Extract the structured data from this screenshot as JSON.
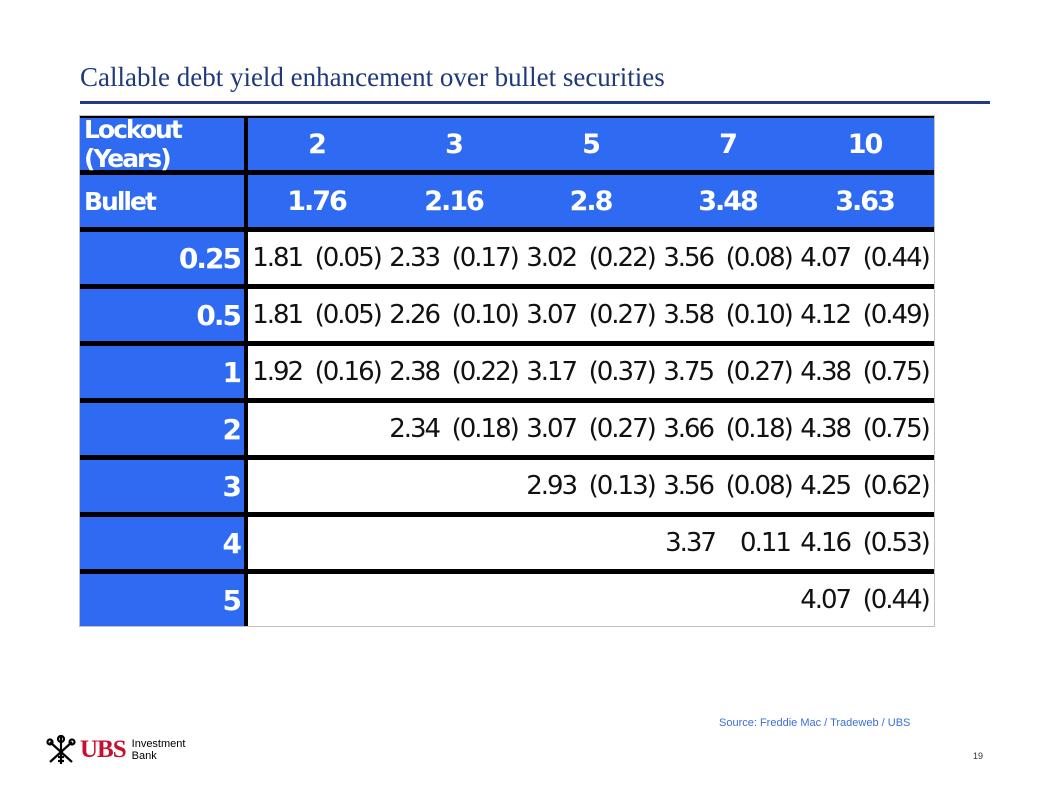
{
  "page": {
    "title": "Callable debt yield enhancement  over bullet securities",
    "source": "Source: Freddie Mac / Tradeweb  / UBS",
    "page_number": "19"
  },
  "logo": {
    "brand": "UBS",
    "line1": "Investment",
    "line2": "Bank"
  },
  "table": {
    "header_label": "Lockout (Years)",
    "maturities": [
      "2",
      "3",
      "5",
      "7",
      "10"
    ],
    "bullet_label": "Bullet",
    "bullet": [
      "1.76",
      "2.16",
      "2.8",
      "3.48",
      "3.63"
    ],
    "rows": [
      {
        "lockout": "0.25",
        "cells": [
          "1.81  (0.05)",
          "2.33  (0.17)",
          "3.02  (0.22)",
          "3.56  (0.08)",
          "4.07  (0.44)"
        ]
      },
      {
        "lockout": "0.5",
        "cells": [
          "1.81  (0.05)",
          "2.26  (0.10)",
          "3.07  (0.27)",
          "3.58  (0.10)",
          "4.12  (0.49)"
        ]
      },
      {
        "lockout": "1",
        "cells": [
          "1.92  (0.16)",
          "2.38  (0.22)",
          "3.17  (0.37)",
          "3.75  (0.27)",
          "4.38  (0.75)"
        ]
      },
      {
        "lockout": "2",
        "cells": [
          "",
          "2.34  (0.18)",
          "3.07  (0.27)",
          "3.66  (0.18)",
          "4.38  (0.75)"
        ]
      },
      {
        "lockout": "3",
        "cells": [
          "",
          "",
          "2.93  (0.13)",
          "3.56  (0.08)",
          "4.25  (0.62)"
        ]
      },
      {
        "lockout": "4",
        "cells": [
          "",
          "",
          "",
          "3.37    0.11",
          "4.16  (0.53)"
        ]
      },
      {
        "lockout": "5",
        "cells": [
          "",
          "",
          "",
          "",
          "4.07  (0.44)"
        ]
      }
    ]
  },
  "colors": {
    "header_blue": "#2f6bf2",
    "title_navy": "#1f3a7a",
    "logo_red": "#c8102e",
    "source_blue": "#3a6fd8"
  }
}
